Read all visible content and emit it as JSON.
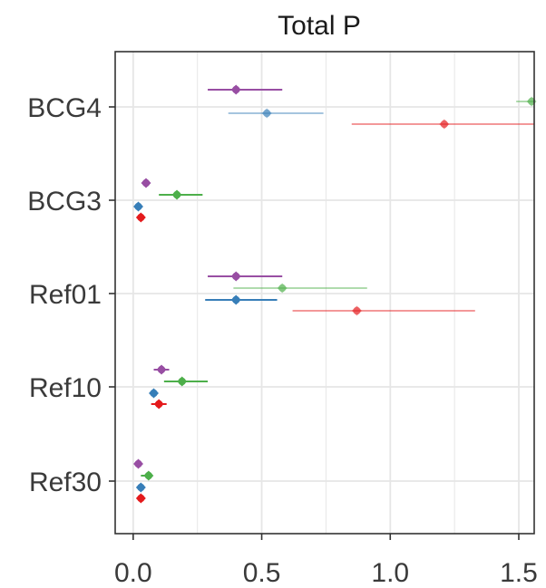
{
  "chart_data": {
    "type": "scatter",
    "title": "Total P",
    "xlabel": "",
    "ylabel": "",
    "xlim": [
      -0.07,
      1.56
    ],
    "xticks": [
      0.0,
      0.5,
      1.0,
      1.5
    ],
    "xtick_labels": [
      "0.0",
      "0.5",
      "1.0",
      "1.5"
    ],
    "categories": [
      "BCG4",
      "BCG3",
      "Ref01",
      "Ref10",
      "Ref30"
    ],
    "grid": true,
    "series": [
      {
        "color": "#984ea3",
        "points": [
          {
            "category": "BCG4",
            "x": 0.4,
            "low": 0.29,
            "high": 0.58,
            "faded": false
          },
          {
            "category": "BCG3",
            "x": 0.05,
            "low": 0.05,
            "high": 0.05,
            "faded": false
          },
          {
            "category": "Ref01",
            "x": 0.4,
            "low": 0.29,
            "high": 0.58,
            "faded": false
          },
          {
            "category": "Ref10",
            "x": 0.11,
            "low": 0.08,
            "high": 0.14,
            "faded": false
          },
          {
            "category": "Ref30",
            "x": 0.02,
            "low": 0.02,
            "high": 0.02,
            "faded": false
          }
        ]
      },
      {
        "color": "#4daf4a",
        "points": [
          {
            "category": "BCG4",
            "x": 1.55,
            "low": 1.49,
            "high": 1.56,
            "faded": true
          },
          {
            "category": "BCG3",
            "x": 0.17,
            "low": 0.1,
            "high": 0.27,
            "faded": false
          },
          {
            "category": "Ref01",
            "x": 0.58,
            "low": 0.39,
            "high": 0.91,
            "faded": true
          },
          {
            "category": "Ref10",
            "x": 0.19,
            "low": 0.12,
            "high": 0.29,
            "faded": false
          },
          {
            "category": "Ref30",
            "x": 0.06,
            "low": 0.03,
            "high": 0.07,
            "faded": false
          }
        ]
      },
      {
        "color": "#377eb8",
        "points": [
          {
            "category": "BCG4",
            "x": 0.52,
            "low": 0.37,
            "high": 0.74,
            "faded": true
          },
          {
            "category": "BCG3",
            "x": 0.02,
            "low": 0.02,
            "high": 0.02,
            "faded": false
          },
          {
            "category": "Ref01",
            "x": 0.4,
            "low": 0.28,
            "high": 0.56,
            "faded": false
          },
          {
            "category": "Ref10",
            "x": 0.08,
            "low": 0.08,
            "high": 0.08,
            "faded": false
          },
          {
            "category": "Ref30",
            "x": 0.03,
            "low": 0.03,
            "high": 0.03,
            "faded": false
          }
        ]
      },
      {
        "color": "#e41a1c",
        "points": [
          {
            "category": "BCG4",
            "x": 1.21,
            "low": 0.85,
            "high": 1.56,
            "faded": true
          },
          {
            "category": "BCG3",
            "x": 0.03,
            "low": 0.03,
            "high": 0.03,
            "faded": false
          },
          {
            "category": "Ref01",
            "x": 0.87,
            "low": 0.62,
            "high": 1.33,
            "faded": true
          },
          {
            "category": "Ref10",
            "x": 0.1,
            "low": 0.07,
            "high": 0.13,
            "faded": false
          },
          {
            "category": "Ref30",
            "x": 0.03,
            "low": 0.03,
            "high": 0.03,
            "faded": false
          }
        ]
      }
    ]
  }
}
